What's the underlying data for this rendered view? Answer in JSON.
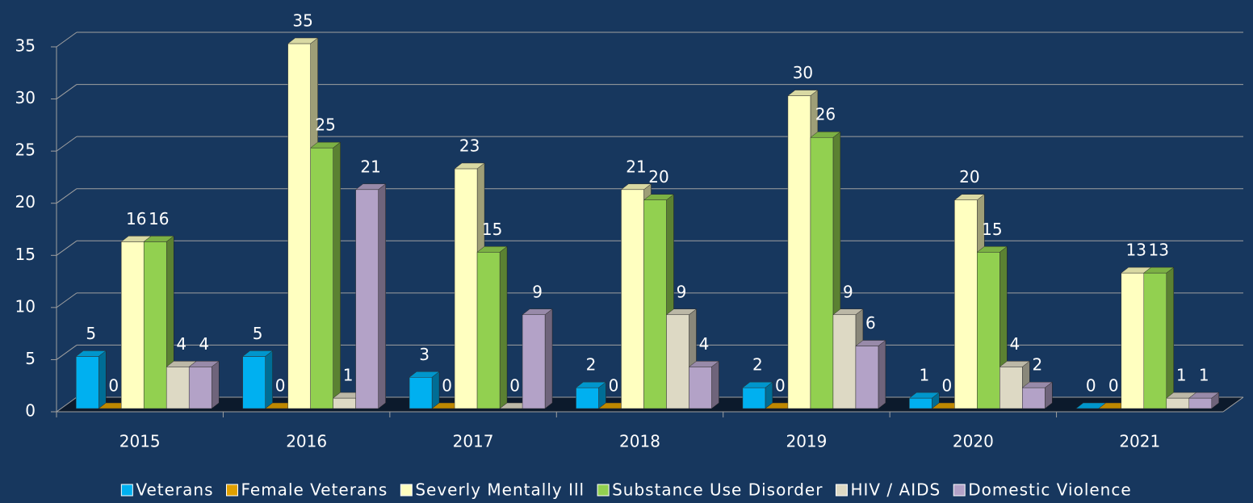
{
  "chart_data": {
    "type": "bar3d",
    "categories": [
      "2015",
      "2016",
      "2017",
      "2018",
      "2019",
      "2020",
      "2021"
    ],
    "series": [
      {
        "name": "Veterans",
        "color": "#00b0f0",
        "values": [
          5,
          5,
          3,
          2,
          2,
          1,
          0
        ]
      },
      {
        "name": "Female Veterans",
        "color": "#e0a000",
        "values": [
          0,
          0,
          0,
          0,
          0,
          0,
          0
        ]
      },
      {
        "name": "Severly Mentally Ill",
        "color": "#ffffc0",
        "values": [
          16,
          35,
          23,
          21,
          30,
          20,
          13
        ]
      },
      {
        "name": "Substance Use Disorder",
        "color": "#92d050",
        "values": [
          16,
          25,
          15,
          20,
          26,
          15,
          13
        ]
      },
      {
        "name": "HIV / AIDS",
        "color": "#ddd9c4",
        "values": [
          4,
          1,
          0,
          9,
          9,
          4,
          1
        ]
      },
      {
        "name": "Domestic Violence",
        "color": "#b3a2c7",
        "values": [
          4,
          21,
          9,
          4,
          6,
          2,
          1
        ]
      }
    ],
    "ylim": [
      0,
      35
    ],
    "yticks": [
      0,
      5,
      10,
      15,
      20,
      25,
      30,
      35
    ],
    "grid": true,
    "legend": "bottom"
  }
}
